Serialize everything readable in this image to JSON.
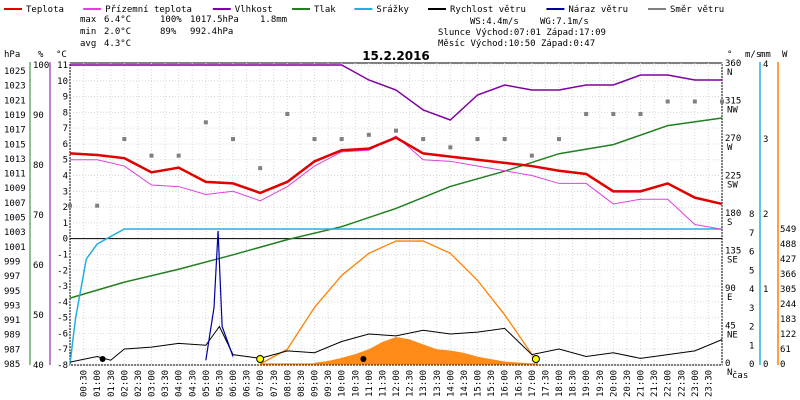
{
  "title": "15.2.2016",
  "legend": [
    {
      "label": "Teplota",
      "color": "#e00000"
    },
    {
      "label": "Přízemní teplota",
      "color": "#e040e0"
    },
    {
      "label": "Vlhkost",
      "color": "#8000a0"
    },
    {
      "label": "Tlak",
      "color": "#208020"
    },
    {
      "label": "Srážky",
      "color": "#20b0e0"
    },
    {
      "label": "Rychlost větru",
      "color": "#000000"
    },
    {
      "label": "Náraz větru",
      "color": "#0000a0"
    },
    {
      "label": "Směr větru",
      "color": "#808080"
    }
  ],
  "stats": {
    "max": {
      "label": "max",
      "temp": "6.4°C",
      "hum": "100%",
      "pres": "1017.5hPa",
      "rain": "1.8mm"
    },
    "min": {
      "label": "min",
      "temp": "2.0°C",
      "hum": "89%",
      "pres": "992.4hPa"
    },
    "avg": {
      "label": "avg",
      "temp": "4.3°C"
    },
    "ws": "WS:4.4m/s",
    "wg": "WG:7.1m/s",
    "sun": "Slunce Východ:07:01  Západ:17:09",
    "moon": "Měsíc  Východ:10:50  Západ:0:47"
  },
  "axes": {
    "unit_hpa": "hPa",
    "unit_pct": "%",
    "unit_c": "°C",
    "unit_deg": "°",
    "unit_mm": "mm",
    "unit_ms": "m/s",
    "unit_w": "W",
    "xlabel": "čas",
    "hpa_ticks": [
      "1025",
      "1023",
      "1021",
      "1019",
      "1017",
      "1015",
      "1013",
      "1011",
      "1009",
      "1007",
      "1005",
      "1003",
      "1001",
      "999",
      "997",
      "995",
      "993",
      "991",
      "989",
      "987",
      "985"
    ],
    "pct_ticks": [
      "100",
      "90",
      "80",
      "70",
      "60",
      "50",
      "40"
    ],
    "c_ticks": [
      "11",
      "10",
      "9",
      "8",
      "7",
      "6",
      "5",
      "4",
      "3",
      "2",
      "1",
      "0",
      "-1",
      "-2",
      "-3",
      "-4",
      "-5",
      "-6",
      "-7",
      "-8"
    ],
    "dir_ticks": [
      "360\nN",
      "315\nNW",
      "270\nW",
      "225\nSW",
      "180\nS",
      "135\nSE",
      "90\nE",
      "45\nNE",
      "0\nN"
    ],
    "mm_ticks": [
      "4",
      "3",
      "2",
      "1",
      "0"
    ],
    "ms_ticks": [
      "8",
      "7",
      "6",
      "5",
      "4",
      "3",
      "2",
      "1",
      "0"
    ],
    "w_ticks": [
      "549",
      "488",
      "427",
      "366",
      "305",
      "244",
      "183",
      "122",
      "61",
      "0"
    ],
    "time_ticks": [
      "00:30",
      "01:00",
      "01:30",
      "02:00",
      "02:30",
      "03:00",
      "03:30",
      "04:00",
      "04:30",
      "05:00",
      "05:30",
      "06:00",
      "06:30",
      "07:00",
      "07:30",
      "08:00",
      "08:30",
      "09:00",
      "09:30",
      "10:00",
      "10:30",
      "11:00",
      "11:30",
      "12:00",
      "12:30",
      "13:00",
      "13:30",
      "14:00",
      "14:30",
      "15:00",
      "15:30",
      "16:00",
      "16:30",
      "17:00",
      "17:30",
      "18:00",
      "18:30",
      "19:00",
      "19:30",
      "20:00",
      "20:30",
      "21:00",
      "21:30",
      "22:00",
      "22:30",
      "23:00",
      "23:30"
    ]
  },
  "chart_data": {
    "type": "line",
    "x_unit": "hour of day",
    "series": [
      {
        "name": "Teplota",
        "unit": "°C",
        "color": "#e00000",
        "points": [
          [
            0,
            5.4
          ],
          [
            1,
            5.3
          ],
          [
            2,
            5.1
          ],
          [
            3,
            4.2
          ],
          [
            4,
            4.5
          ],
          [
            5,
            3.6
          ],
          [
            6,
            3.5
          ],
          [
            7,
            2.9
          ],
          [
            8,
            3.6
          ],
          [
            9,
            4.9
          ],
          [
            10,
            5.6
          ],
          [
            11,
            5.7
          ],
          [
            12,
            6.4
          ],
          [
            13,
            5.4
          ],
          [
            14,
            5.2
          ],
          [
            15,
            5.0
          ],
          [
            16,
            4.8
          ],
          [
            17,
            4.6
          ],
          [
            18,
            4.3
          ],
          [
            19,
            4.1
          ],
          [
            20,
            3.0
          ],
          [
            21,
            3.0
          ],
          [
            22,
            3.5
          ],
          [
            23,
            2.6
          ],
          [
            24,
            2.2
          ]
        ]
      },
      {
        "name": "Přízemní teplota",
        "unit": "°C",
        "color": "#e040e0",
        "points": [
          [
            0,
            5.0
          ],
          [
            1,
            5.0
          ],
          [
            2,
            4.6
          ],
          [
            3,
            3.4
          ],
          [
            4,
            3.3
          ],
          [
            5,
            2.8
          ],
          [
            6,
            3.0
          ],
          [
            7,
            2.4
          ],
          [
            8,
            3.3
          ],
          [
            9,
            4.6
          ],
          [
            10,
            5.5
          ],
          [
            11,
            5.6
          ],
          [
            12,
            6.5
          ],
          [
            13,
            5.0
          ],
          [
            14,
            4.9
          ],
          [
            15,
            4.6
          ],
          [
            16,
            4.3
          ],
          [
            17,
            4.0
          ],
          [
            18,
            3.5
          ],
          [
            19,
            3.5
          ],
          [
            20,
            2.2
          ],
          [
            21,
            2.5
          ],
          [
            22,
            2.5
          ],
          [
            23,
            0.9
          ],
          [
            24,
            0.6
          ]
        ]
      },
      {
        "name": "Vlhkost",
        "unit": "%",
        "color": "#8000a0",
        "points": [
          [
            0,
            100
          ],
          [
            3,
            100
          ],
          [
            6,
            100
          ],
          [
            9,
            100
          ],
          [
            10,
            100
          ],
          [
            11,
            97
          ],
          [
            12,
            95
          ],
          [
            13,
            91
          ],
          [
            14,
            89
          ],
          [
            15,
            94
          ],
          [
            16,
            96
          ],
          [
            17,
            95
          ],
          [
            18,
            95
          ],
          [
            19,
            96
          ],
          [
            20,
            96
          ],
          [
            21,
            98
          ],
          [
            22,
            98
          ],
          [
            23,
            97
          ],
          [
            24,
            97
          ]
        ]
      },
      {
        "name": "Tlak",
        "unit": "hPa",
        "color": "#208020",
        "points": [
          [
            0,
            993.8
          ],
          [
            2,
            995.9
          ],
          [
            4,
            997.6
          ],
          [
            6,
            999.5
          ],
          [
            8,
            1001.5
          ],
          [
            10,
            1003.2
          ],
          [
            12,
            1005.6
          ],
          [
            14,
            1008.5
          ],
          [
            16,
            1010.5
          ],
          [
            18,
            1012.8
          ],
          [
            20,
            1014.0
          ],
          [
            22,
            1016.5
          ],
          [
            24,
            1017.5
          ]
        ]
      },
      {
        "name": "Srážky",
        "unit": "mm",
        "color": "#20b0e0",
        "points": [
          [
            0,
            0.0
          ],
          [
            0.2,
            0.6
          ],
          [
            0.6,
            1.4
          ],
          [
            1,
            1.6
          ],
          [
            2,
            1.8
          ],
          [
            24,
            1.8
          ]
        ]
      },
      {
        "name": "Rychlost větru",
        "unit": "m/s",
        "color": "#000000",
        "points": [
          [
            0,
            0.1
          ],
          [
            1,
            0.4
          ],
          [
            1.5,
            0.2
          ],
          [
            2,
            0.8
          ],
          [
            3,
            0.9
          ],
          [
            4,
            1.1
          ],
          [
            5,
            1.0
          ],
          [
            5.5,
            2.0
          ],
          [
            6,
            0.5
          ],
          [
            7,
            0.3
          ],
          [
            8,
            0.7
          ],
          [
            9,
            0.6
          ],
          [
            10,
            1.2
          ],
          [
            11,
            1.6
          ],
          [
            12,
            1.5
          ],
          [
            13,
            1.8
          ],
          [
            14,
            1.6
          ],
          [
            15,
            1.7
          ],
          [
            16,
            1.9
          ],
          [
            16.5,
            1.2
          ],
          [
            17,
            0.5
          ],
          [
            18,
            0.8
          ],
          [
            19,
            0.4
          ],
          [
            20,
            0.6
          ],
          [
            21,
            0.3
          ],
          [
            22,
            0.5
          ],
          [
            23,
            0.7
          ],
          [
            24,
            1.3
          ]
        ]
      },
      {
        "name": "Náraz větru",
        "unit": "m/s",
        "color": "#0000a0",
        "points": [
          [
            5,
            0.2
          ],
          [
            5.3,
            3.0
          ],
          [
            5.45,
            7.1
          ],
          [
            5.6,
            2.0
          ],
          [
            6,
            0.4
          ]
        ]
      },
      {
        "name": "Směr větru",
        "unit": "°",
        "color": "#808080",
        "points": [
          [
            0,
            190
          ],
          [
            1,
            190
          ],
          [
            2,
            270
          ],
          [
            3,
            250
          ],
          [
            4,
            250
          ],
          [
            5,
            290
          ],
          [
            6,
            270
          ],
          [
            7,
            235
          ],
          [
            8,
            300
          ],
          [
            9,
            270
          ],
          [
            10,
            270
          ],
          [
            11,
            275
          ],
          [
            12,
            280
          ],
          [
            13,
            270
          ],
          [
            14,
            260
          ],
          [
            15,
            270
          ],
          [
            16,
            270
          ],
          [
            17,
            250
          ],
          [
            18,
            270
          ],
          [
            19,
            300
          ],
          [
            20,
            300
          ],
          [
            21,
            300
          ],
          [
            22,
            315
          ],
          [
            23,
            315
          ],
          [
            24,
            315
          ]
        ]
      },
      {
        "name": "Sluneční záření",
        "unit": "W",
        "color": "#ff8000",
        "points": [
          [
            7,
            0
          ],
          [
            8,
            60
          ],
          [
            9,
            230
          ],
          [
            10,
            360
          ],
          [
            11,
            450
          ],
          [
            12,
            500
          ],
          [
            13,
            500
          ],
          [
            14,
            450
          ],
          [
            15,
            340
          ],
          [
            16,
            200
          ],
          [
            17,
            40
          ],
          [
            17.2,
            0
          ]
        ]
      }
    ],
    "ylim_temp": [
      -8,
      11
    ],
    "ylim_hum": [
      40,
      100
    ],
    "ylim_pres": [
      985,
      1025
    ],
    "ylim_rain_mm": [
      0,
      4
    ],
    "ylim_wind_ms": [
      0,
      8
    ],
    "ylim_rad_w": [
      0,
      549
    ],
    "grid": true
  }
}
